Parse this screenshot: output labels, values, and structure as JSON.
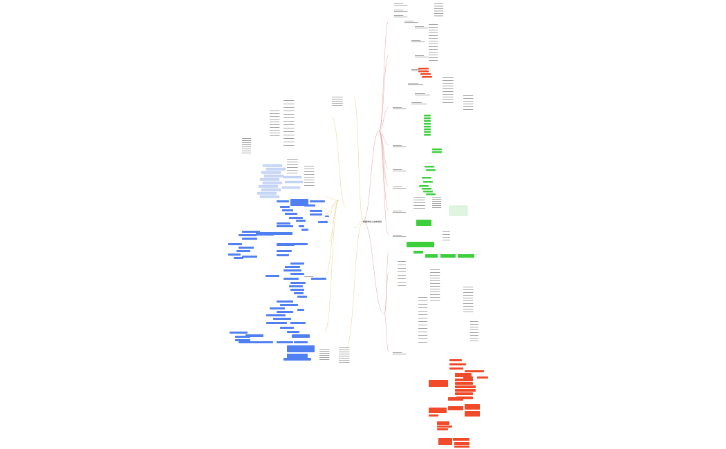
{
  "mindmap": {
    "root": {
      "label": "成都市中心城市规划"
    },
    "colors": {
      "background": "#ffffff",
      "branch_right": "#e8a0a0",
      "branch_left": "#e8d08a",
      "node_blue": "#4f7ff0",
      "node_blue_light": "#c9d7f7",
      "node_green": "#3ccf3c",
      "node_red": "#f04a2a",
      "text_gray": "#777777"
    }
  }
}
